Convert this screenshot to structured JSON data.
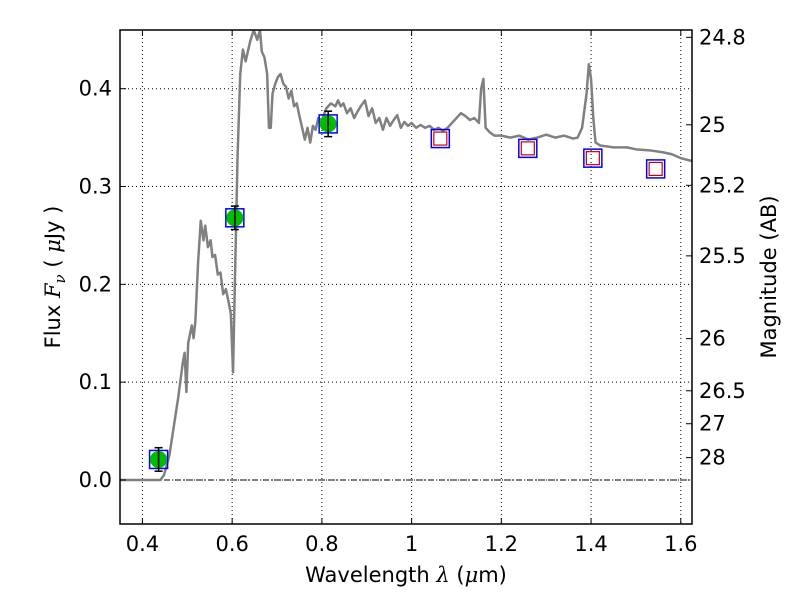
{
  "chart_data": {
    "type": "scatter",
    "xlabel_prefix": "Wavelength  ",
    "xlabel_symbol": "λ",
    "xlabel_unit_open": " (",
    "xlabel_unit_mu": "μ",
    "xlabel_unit_rest": "m)",
    "ylabel_prefix": "Flux  ",
    "ylabel_symbol": "F",
    "ylabel_subscript": "ν",
    "ylabel_unit_open": "  ( ",
    "ylabel_unit_mu": "μ",
    "ylabel_unit_rest": "Jy )",
    "y2label": "Magnitude (AB)",
    "xlim": [
      0.35,
      1.625
    ],
    "ylim": [
      -0.045,
      0.46
    ],
    "grid": true,
    "x_ticks": [
      {
        "value": 0.4,
        "label": "0.4"
      },
      {
        "value": 0.6,
        "label": "0.6"
      },
      {
        "value": 0.8,
        "label": "0.8"
      },
      {
        "value": 1.0,
        "label": "1"
      },
      {
        "value": 1.2,
        "label": "1.2"
      },
      {
        "value": 1.4,
        "label": "1.4"
      },
      {
        "value": 1.6,
        "label": "1.6"
      }
    ],
    "y_ticks": [
      {
        "value": 0.0,
        "label": "0.0"
      },
      {
        "value": 0.1,
        "label": "0.1"
      },
      {
        "value": 0.2,
        "label": "0.2"
      },
      {
        "value": 0.3,
        "label": "0.3"
      },
      {
        "value": 0.4,
        "label": "0.4"
      }
    ],
    "mag_ticks": [
      {
        "flux": 0.4525,
        "label": "24.8"
      },
      {
        "flux": 0.3631,
        "label": "25"
      },
      {
        "flux": 0.3012,
        "label": "25.2"
      },
      {
        "flux": 0.2291,
        "label": "25.5"
      },
      {
        "flux": 0.1445,
        "label": "26"
      },
      {
        "flux": 0.0912,
        "label": "26.5"
      },
      {
        "flux": 0.0575,
        "label": "27"
      },
      {
        "flux": 0.0229,
        "label": "28"
      }
    ],
    "sed_model": {
      "color": "#808080",
      "points": [
        [
          0.35,
          0.0
        ],
        [
          0.44,
          0.0
        ],
        [
          0.448,
          0.005
        ],
        [
          0.46,
          0.025
        ],
        [
          0.47,
          0.055
        ],
        [
          0.48,
          0.085
        ],
        [
          0.49,
          0.12
        ],
        [
          0.494,
          0.13
        ],
        [
          0.498,
          0.09
        ],
        [
          0.502,
          0.14
        ],
        [
          0.51,
          0.158
        ],
        [
          0.514,
          0.145
        ],
        [
          0.518,
          0.162
        ],
        [
          0.524,
          0.222
        ],
        [
          0.53,
          0.265
        ],
        [
          0.536,
          0.245
        ],
        [
          0.54,
          0.26
        ],
        [
          0.546,
          0.238
        ],
        [
          0.552,
          0.245
        ],
        [
          0.556,
          0.228
        ],
        [
          0.562,
          0.23
        ],
        [
          0.568,
          0.21
        ],
        [
          0.574,
          0.212
        ],
        [
          0.58,
          0.19
        ],
        [
          0.586,
          0.195
        ],
        [
          0.592,
          0.182
        ],
        [
          0.597,
          0.17
        ],
        [
          0.602,
          0.11
        ],
        [
          0.606,
          0.2
        ],
        [
          0.612,
          0.33
        ],
        [
          0.618,
          0.415
        ],
        [
          0.624,
          0.44
        ],
        [
          0.63,
          0.428
        ],
        [
          0.64,
          0.448
        ],
        [
          0.648,
          0.46
        ],
        [
          0.656,
          0.45
        ],
        [
          0.662,
          0.46
        ],
        [
          0.666,
          0.438
        ],
        [
          0.672,
          0.432
        ],
        [
          0.678,
          0.415
        ],
        [
          0.682,
          0.36
        ],
        [
          0.686,
          0.36
        ],
        [
          0.69,
          0.395
        ],
        [
          0.696,
          0.405
        ],
        [
          0.702,
          0.412
        ],
        [
          0.708,
          0.415
        ],
        [
          0.714,
          0.405
        ],
        [
          0.72,
          0.402
        ],
        [
          0.726,
          0.39
        ],
        [
          0.732,
          0.398
        ],
        [
          0.738,
          0.382
        ],
        [
          0.744,
          0.385
        ],
        [
          0.75,
          0.372
        ],
        [
          0.756,
          0.36
        ],
        [
          0.762,
          0.348
        ],
        [
          0.768,
          0.36
        ],
        [
          0.774,
          0.345
        ],
        [
          0.78,
          0.362
        ],
        [
          0.786,
          0.358
        ],
        [
          0.792,
          0.37
        ],
        [
          0.8,
          0.368
        ],
        [
          0.81,
          0.38
        ],
        [
          0.82,
          0.385
        ],
        [
          0.83,
          0.382
        ],
        [
          0.836,
          0.388
        ],
        [
          0.842,
          0.382
        ],
        [
          0.848,
          0.385
        ],
        [
          0.856,
          0.375
        ],
        [
          0.864,
          0.38
        ],
        [
          0.872,
          0.37
        ],
        [
          0.88,
          0.377
        ],
        [
          0.888,
          0.383
        ],
        [
          0.896,
          0.388
        ],
        [
          0.904,
          0.372
        ],
        [
          0.912,
          0.38
        ],
        [
          0.92,
          0.365
        ],
        [
          0.928,
          0.37
        ],
        [
          0.936,
          0.358
        ],
        [
          0.944,
          0.37
        ],
        [
          0.952,
          0.362
        ],
        [
          0.96,
          0.368
        ],
        [
          0.968,
          0.373
        ],
        [
          0.976,
          0.36
        ],
        [
          0.984,
          0.366
        ],
        [
          0.992,
          0.362
        ],
        [
          1.0,
          0.365
        ],
        [
          1.01,
          0.36
        ],
        [
          1.02,
          0.363
        ],
        [
          1.03,
          0.36
        ],
        [
          1.04,
          0.362
        ],
        [
          1.05,
          0.358
        ],
        [
          1.06,
          0.36
        ],
        [
          1.07,
          0.357
        ],
        [
          1.08,
          0.36
        ],
        [
          1.09,
          0.365
        ],
        [
          1.1,
          0.37
        ],
        [
          1.11,
          0.375
        ],
        [
          1.12,
          0.372
        ],
        [
          1.13,
          0.368
        ],
        [
          1.14,
          0.37
        ],
        [
          1.15,
          0.365
        ],
        [
          1.155,
          0.4
        ],
        [
          1.16,
          0.41
        ],
        [
          1.165,
          0.36
        ],
        [
          1.175,
          0.355
        ],
        [
          1.185,
          0.352
        ],
        [
          1.2,
          0.352
        ],
        [
          1.22,
          0.35
        ],
        [
          1.24,
          0.352
        ],
        [
          1.26,
          0.348
        ],
        [
          1.28,
          0.35
        ],
        [
          1.3,
          0.353
        ],
        [
          1.32,
          0.35
        ],
        [
          1.34,
          0.352
        ],
        [
          1.36,
          0.349
        ],
        [
          1.37,
          0.35
        ],
        [
          1.38,
          0.36
        ],
        [
          1.39,
          0.395
        ],
        [
          1.395,
          0.425
        ],
        [
          1.4,
          0.41
        ],
        [
          1.405,
          0.37
        ],
        [
          1.41,
          0.345
        ],
        [
          1.42,
          0.342
        ],
        [
          1.45,
          0.34
        ],
        [
          1.48,
          0.34
        ],
        [
          1.5,
          0.338
        ],
        [
          1.53,
          0.337
        ],
        [
          1.56,
          0.335
        ],
        [
          1.58,
          0.333
        ],
        [
          1.6,
          0.329
        ],
        [
          1.625,
          0.326
        ]
      ]
    },
    "observed": {
      "marker_color": "#00bb00",
      "errorbar_color": "#000000",
      "points": [
        {
          "x": 0.436,
          "y": 0.021,
          "err": 0.012
        },
        {
          "x": 0.606,
          "y": 0.268,
          "err": 0.012
        },
        {
          "x": 0.814,
          "y": 0.364,
          "err": 0.013
        }
      ]
    },
    "model_photometry": {
      "square_color": "#0000ff",
      "inner_color": "#cc0000",
      "squares": [
        {
          "x": 0.436,
          "y": 0.021
        },
        {
          "x": 0.606,
          "y": 0.268
        },
        {
          "x": 0.814,
          "y": 0.364
        },
        {
          "x": 1.064,
          "y": 0.349
        },
        {
          "x": 1.259,
          "y": 0.339
        },
        {
          "x": 1.404,
          "y": 0.329
        },
        {
          "x": 1.544,
          "y": 0.318
        }
      ],
      "inner_squares": [
        {
          "x": 1.064,
          "y": 0.349
        },
        {
          "x": 1.259,
          "y": 0.339
        },
        {
          "x": 1.404,
          "y": 0.329
        },
        {
          "x": 1.544,
          "y": 0.318
        }
      ]
    }
  }
}
